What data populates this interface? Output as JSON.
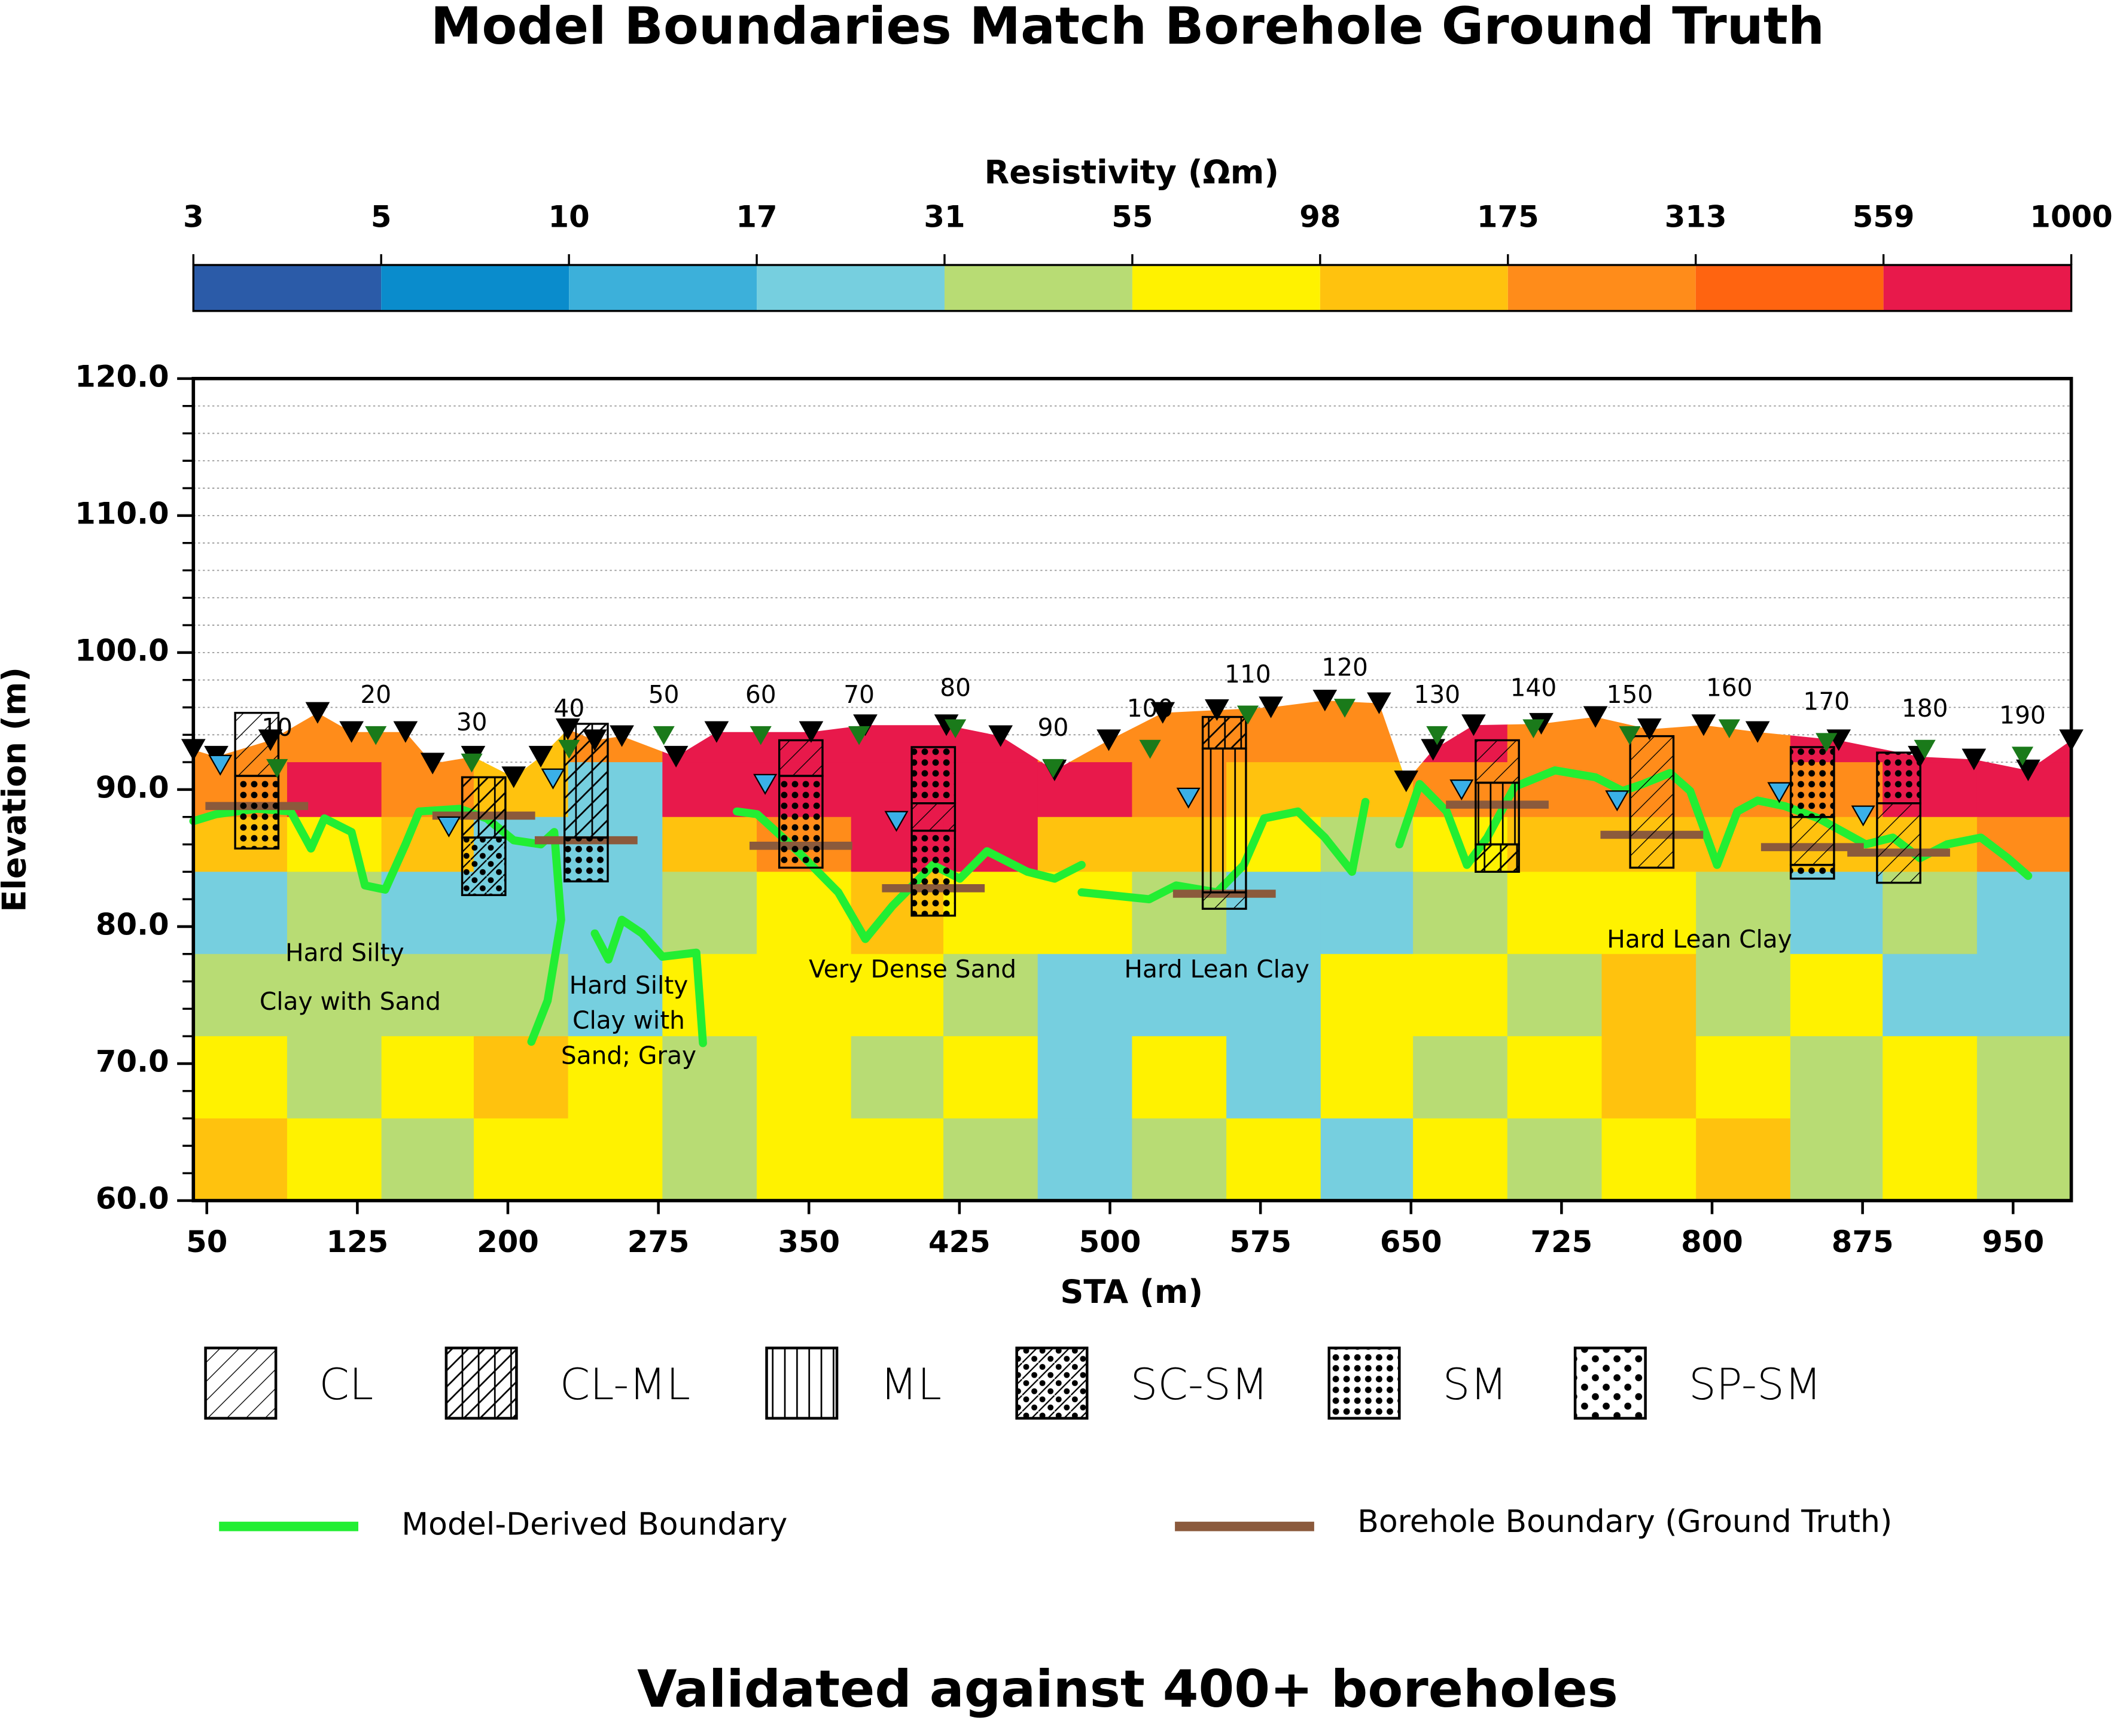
{
  "chart_data": {
    "type": "section",
    "title": "Model Boundaries Match Borehole Ground Truth",
    "subtitle": "Validated against 400+ boreholes",
    "xlabel": "STA (m)",
    "ylabel": "Elevation (m)",
    "xlim": [
      43.3,
      979
    ],
    "ylim": [
      60,
      120
    ],
    "xticks": [
      50,
      125,
      200,
      275,
      350,
      425,
      500,
      575,
      650,
      725,
      800,
      875,
      950
    ],
    "yticks": [
      {
        "value": 60,
        "label": "60.0"
      },
      {
        "value": 70,
        "label": "70.0"
      },
      {
        "value": 80,
        "label": "80.0"
      },
      {
        "value": 90,
        "label": "90.0"
      },
      {
        "value": 100,
        "label": "100.0"
      },
      {
        "value": 110,
        "label": "110.0"
      },
      {
        "value": 120,
        "label": "120.0"
      }
    ],
    "yminorticks": [
      62,
      64,
      66,
      68,
      72,
      74,
      76,
      78,
      82,
      84,
      86,
      88,
      92,
      94,
      96,
      98,
      102,
      104,
      106,
      108,
      112,
      114,
      116,
      118
    ],
    "grid": true,
    "colorbar": {
      "label": "Resistivity (Ωm)",
      "ticks": [
        3,
        5,
        10,
        17,
        31,
        55,
        98,
        175,
        313,
        559,
        1000
      ],
      "colors": [
        "#2b5ba8",
        "#0a8ccc",
        "#3cb0da",
        "#76cfdf",
        "#b8dc74",
        "#fff200",
        "#ffc20e",
        "#ff8c1a",
        "#ff6410",
        "#e8194b"
      ]
    },
    "resistivity": {
      "x_edges": [
        43.3,
        90,
        137,
        183,
        230,
        277,
        324,
        371,
        417,
        464,
        511,
        558,
        605,
        651,
        698,
        745,
        792,
        839,
        885,
        932,
        979
      ],
      "elev_edges": [
        97,
        92,
        88,
        84,
        78,
        72,
        66,
        60
      ],
      "values": [
        [
          200,
          300,
          250,
          150,
          200,
          700,
          600,
          800,
          700,
          250,
          200,
          250,
          200,
          600,
          300,
          250,
          300,
          600,
          700,
          600
        ],
        [
          200,
          600,
          200,
          120,
          25,
          600,
          800,
          900,
          800,
          700,
          250,
          120,
          150,
          200,
          250,
          300,
          200,
          300,
          600,
          700
        ],
        [
          120,
          80,
          150,
          20,
          25,
          150,
          200,
          600,
          700,
          150,
          120,
          90,
          40,
          80,
          150,
          120,
          150,
          120,
          150,
          200
        ],
        [
          20,
          40,
          25,
          20,
          20,
          40,
          70,
          150,
          80,
          60,
          40,
          25,
          20,
          40,
          70,
          60,
          45,
          25,
          40,
          20
        ],
        [
          40,
          45,
          40,
          40,
          25,
          60,
          70,
          70,
          40,
          25,
          20,
          20,
          70,
          80,
          45,
          150,
          40,
          60,
          25,
          20
        ],
        [
          70,
          45,
          70,
          120,
          70,
          40,
          80,
          45,
          70,
          25,
          60,
          20,
          70,
          45,
          80,
          120,
          70,
          40,
          70,
          40
        ],
        [
          120,
          70,
          45,
          80,
          70,
          40,
          70,
          80,
          40,
          25,
          45,
          80,
          25,
          70,
          40,
          70,
          120,
          45,
          70,
          40
        ]
      ]
    },
    "ground_surface": {
      "x": [
        43.3,
        54.7,
        81.7,
        105.2,
        122.1,
        149.0,
        162.5,
        182.7,
        202.9,
        216.4,
        229.9,
        243.3,
        256.8,
        283.8,
        304.0,
        351.1,
        378.1,
        418.5,
        445.5,
        472.4,
        499.4,
        526.3,
        553.3,
        580.2,
        607.1,
        634.1,
        647.6,
        661.0,
        681.2,
        714.9,
        741.9,
        768.8,
        795.8,
        822.7,
        863.1,
        903.6,
        930.5,
        957.5,
        979.0
      ],
      "elev": [
        92.9,
        92.4,
        93.6,
        95.6,
        94.2,
        94.2,
        91.9,
        92.4,
        90.9,
        92.4,
        94.4,
        93.6,
        93.9,
        92.4,
        94.2,
        94.2,
        94.7,
        94.7,
        93.9,
        91.4,
        93.6,
        95.6,
        95.8,
        96.0,
        96.5,
        96.3,
        90.6,
        92.9,
        94.7,
        94.8,
        95.3,
        94.4,
        94.7,
        94.2,
        93.6,
        92.4,
        92.2,
        91.4,
        93.6
      ]
    },
    "stations": {
      "labels": [
        10,
        20,
        30,
        40,
        50,
        60,
        70,
        80,
        90,
        100,
        110,
        120,
        130,
        140,
        150,
        160,
        170,
        180,
        190
      ],
      "x": [
        85.0,
        134.2,
        182.0,
        230.5,
        277.7,
        326.0,
        375.0,
        423.0,
        471.7,
        520.0,
        568.7,
        617.0,
        663.0,
        711.0,
        759.0,
        808.6,
        857.0,
        906.0,
        954.7
      ],
      "elev": [
        94.4,
        96.8,
        94.8,
        95.8,
        96.8,
        96.8,
        96.8,
        97.3,
        94.4,
        95.8,
        98.3,
        98.8,
        96.8,
        97.3,
        96.8,
        97.3,
        96.3,
        95.8,
        95.3
      ]
    },
    "water_table": {
      "x": [
        56.7,
        170.6,
        222.5,
        328.2,
        393.6,
        539.1,
        675.2,
        752.7,
        833.5,
        875.3
      ],
      "elev": [
        91.8,
        87.3,
        90.8,
        90.4,
        87.7,
        89.4,
        90.0,
        89.2,
        89.8,
        88.1
      ]
    },
    "soils": [
      {
        "name": "CL",
        "pattern": "cl"
      },
      {
        "name": "CL-ML",
        "pattern": "clml"
      },
      {
        "name": "ML",
        "pattern": "ml"
      },
      {
        "name": "SC-SM",
        "pattern": "scsm"
      },
      {
        "name": "SM",
        "pattern": "sm"
      },
      {
        "name": "SP-SM",
        "pattern": "spsm"
      }
    ],
    "boreholes": [
      {
        "x": 74.9,
        "boundary": 88.8,
        "layers": [
          {
            "soil": "CL",
            "top": 95.6,
            "bottom": 91.0
          },
          {
            "soil": "SM",
            "top": 91.0,
            "bottom": 85.7
          }
        ]
      },
      {
        "x": 188.0,
        "boundary": 88.1,
        "layers": [
          {
            "soil": "CL-ML",
            "top": 90.9,
            "bottom": 86.5
          },
          {
            "soil": "SC-SM",
            "top": 86.5,
            "bottom": 82.3
          }
        ]
      },
      {
        "x": 239.0,
        "boundary": 86.3,
        "layers": [
          {
            "soil": "CL-ML",
            "top": 94.8,
            "bottom": 86.5
          },
          {
            "soil": "SM",
            "top": 86.5,
            "bottom": 83.3
          }
        ]
      },
      {
        "x": 346.0,
        "boundary": 85.9,
        "layers": [
          {
            "soil": "CL",
            "top": 93.6,
            "bottom": 91.0
          },
          {
            "soil": "SM",
            "top": 91.0,
            "bottom": 84.3
          }
        ]
      },
      {
        "x": 412.0,
        "boundary": 82.8,
        "layers": [
          {
            "soil": "SM",
            "top": 93.1,
            "bottom": 89.0
          },
          {
            "soil": "CL",
            "top": 89.0,
            "bottom": 87.0
          },
          {
            "soil": "SM",
            "top": 87.0,
            "bottom": 80.8
          }
        ]
      },
      {
        "x": 557.0,
        "boundary": 82.4,
        "layers": [
          {
            "soil": "CL-ML",
            "top": 95.3,
            "bottom": 93.0
          },
          {
            "soil": "ML",
            "top": 93.0,
            "bottom": 82.5
          },
          {
            "soil": "CL",
            "top": 82.5,
            "bottom": 81.3
          }
        ]
      },
      {
        "x": 693.0,
        "boundary": 88.9,
        "layers": [
          {
            "soil": "CL",
            "top": 93.6,
            "bottom": 90.5
          },
          {
            "soil": "ML",
            "top": 90.5,
            "bottom": 86.0
          },
          {
            "soil": "CL-ML",
            "top": 86.0,
            "bottom": 84.0
          }
        ]
      },
      {
        "x": 770.0,
        "boundary": 86.7,
        "layers": [
          {
            "soil": "CL",
            "top": 93.9,
            "bottom": 84.3
          }
        ]
      },
      {
        "x": 850.0,
        "boundary": 85.8,
        "layers": [
          {
            "soil": "SM",
            "top": 93.1,
            "bottom": 88.0
          },
          {
            "soil": "CL",
            "top": 88.0,
            "bottom": 84.5
          },
          {
            "soil": "SM",
            "top": 84.5,
            "bottom": 83.5
          }
        ]
      },
      {
        "x": 893.0,
        "boundary": 85.4,
        "layers": [
          {
            "soil": "SM",
            "top": 92.7,
            "bottom": 89.0
          },
          {
            "soil": "CL",
            "top": 89.0,
            "bottom": 83.2
          }
        ]
      }
    ],
    "borehole_boundary": {
      "name": "Borehole Boundary (Ground Truth)",
      "color": "#8b5a3c"
    },
    "series": [
      {
        "name": "Model-Derived Boundary",
        "color": "#22ee33",
        "x": [
          43.3,
          54.7,
          74.9,
          91.8,
          101.9,
          108.6,
          122.1,
          128.8,
          138.9,
          149.0,
          155.8,
          176.0,
          189.5,
          202.9,
          216.4,
          223.1,
          226.5,
          219.8,
          211.7,
          null,
          243.3,
          250.1,
          256.8,
          266.9,
          277.0,
          293.9,
          297.2,
          null,
          314.1,
          324.2,
          344.4,
          364.6,
          378.1,
          391.6,
          411.8,
          425.2,
          438.7,
          458.9,
          472.4,
          485.9,
          null,
          485.9,
          499.4,
          519.6,
          533.0,
          553.3,
          566.7,
          576.8,
          593.7,
          607.1,
          620.6,
          627.3,
          null,
          644.2,
          654.3,
          667.8,
          677.9,
          688.0,
          701.5,
          721.7,
          741.9,
          755.4,
          765.5,
          779.0,
          789.1,
          802.5,
          812.6,
          822.7,
          836.2,
          853.1,
          876.6,
          890.1,
          903.6,
          917.1,
          933.9,
          947.4,
          957.5
        ],
        "values": [
          87.7,
          88.2,
          88.6,
          88.4,
          85.7,
          87.9,
          86.9,
          83.0,
          82.7,
          86.0,
          88.4,
          88.6,
          87.9,
          86.3,
          86.0,
          86.9,
          80.5,
          74.6,
          71.6,
          null,
          79.5,
          77.6,
          80.5,
          79.5,
          77.8,
          78.1,
          71.5,
          null,
          88.4,
          88.2,
          85.5,
          82.5,
          79.1,
          81.5,
          84.5,
          83.5,
          85.5,
          84.0,
          83.5,
          84.5,
          null,
          82.5,
          82.3,
          82.0,
          83.0,
          82.5,
          84.5,
          87.9,
          88.4,
          86.5,
          84.0,
          89.1,
          null,
          86.0,
          90.4,
          88.4,
          84.5,
          86.5,
          90.2,
          91.4,
          90.9,
          89.9,
          90.4,
          91.2,
          89.9,
          84.5,
          88.4,
          89.2,
          88.8,
          87.9,
          86.0,
          86.5,
          85.0,
          86.0,
          86.5,
          85.0,
          83.7
        ]
      }
    ],
    "annotations": [
      {
        "lines": [
          "Hard Silty",
          "Clay with Sand"
        ]
      },
      {
        "lines": [
          "Hard Silty",
          "Clay with",
          "Sand; Gray"
        ]
      },
      {
        "lines": [
          "Very Dense Sand"
        ]
      },
      {
        "lines": [
          "Hard Lean Clay"
        ]
      },
      {
        "lines": [
          "Hard Lean Clay"
        ]
      }
    ]
  }
}
